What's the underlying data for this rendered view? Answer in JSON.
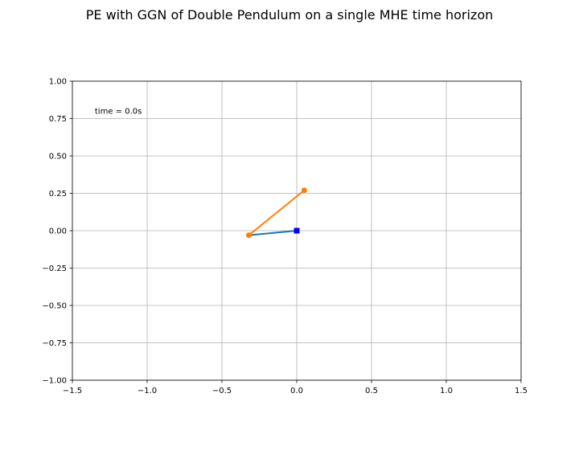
{
  "chart_data": {
    "type": "line",
    "title": "PE with GGN of Double Pendulum on a single MHE time horizon",
    "xlabel": "",
    "ylabel": "",
    "xlim": [
      -1.5,
      1.5
    ],
    "ylim": [
      -1.0,
      1.0
    ],
    "grid": true,
    "x_ticks": [
      -1.5,
      -1.0,
      -0.5,
      0.0,
      0.5,
      1.0,
      1.5
    ],
    "x_tick_labels": [
      "−1.5",
      "−1.0",
      "−0.5",
      "0.0",
      "0.5",
      "1.0",
      "1.5"
    ],
    "y_ticks": [
      1.0,
      0.75,
      0.5,
      0.25,
      0.0,
      -0.25,
      -0.5,
      -0.75,
      -1.0
    ],
    "y_tick_labels": [
      "1.00",
      "0.75",
      "0.50",
      "0.25",
      "0.00",
      "−0.25",
      "−0.50",
      "−0.75",
      "−1.00"
    ],
    "annotation": {
      "text": "time = 0.0s",
      "x": -1.35,
      "y": 0.8
    },
    "series": [
      {
        "color": "#1f77b4",
        "marker": "none",
        "x": [
          0.0,
          -0.32
        ],
        "y": [
          0.0,
          -0.03
        ]
      },
      {
        "color": "#ff7f0e",
        "marker": "circle",
        "x": [
          -0.32,
          0.05
        ],
        "y": [
          -0.03,
          0.27
        ]
      }
    ],
    "pivot": {
      "x": 0.0,
      "y": 0.0,
      "marker": "square",
      "color": "#0000ff"
    }
  }
}
